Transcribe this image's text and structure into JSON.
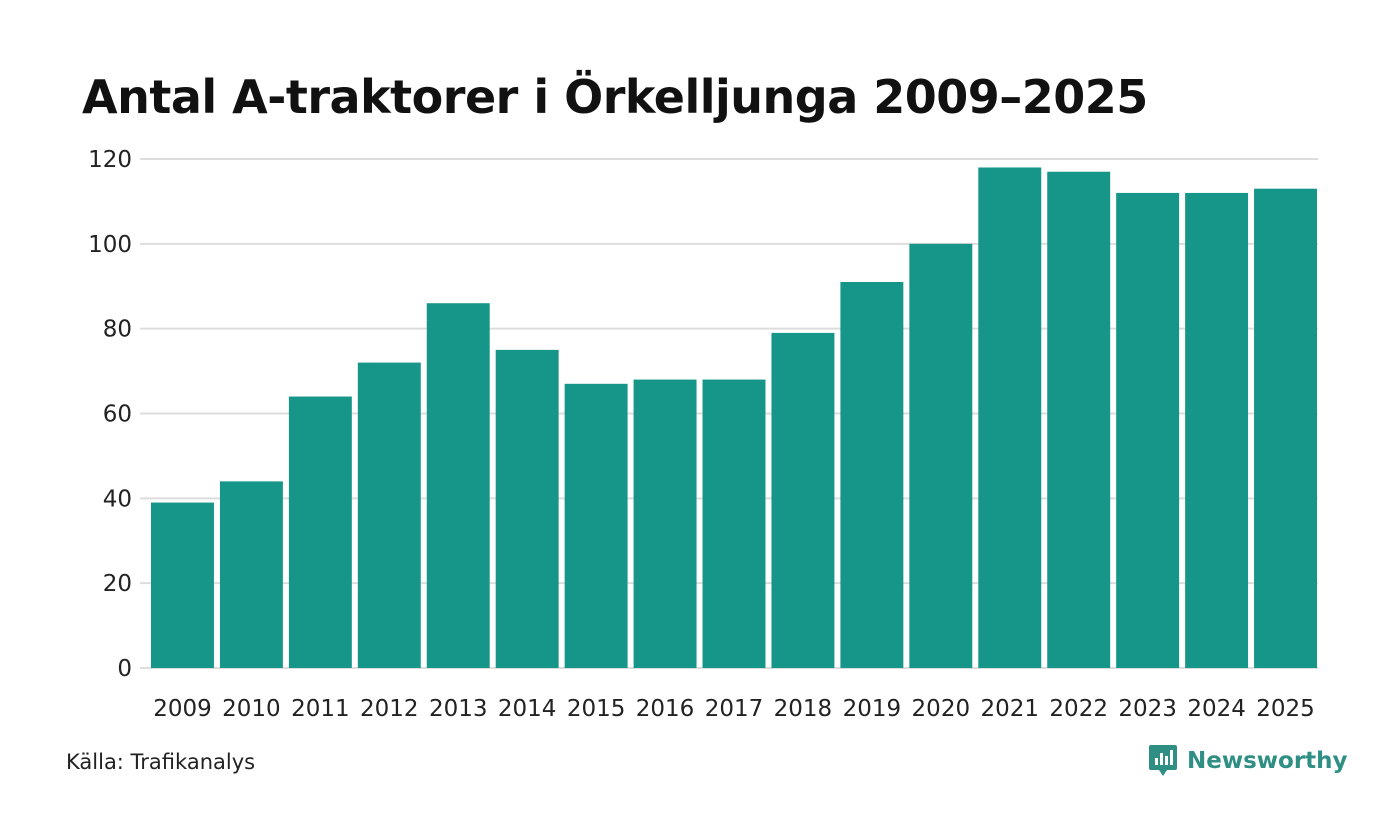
{
  "colors": {
    "bar": "#159688",
    "grid": "#dddddd",
    "brand": "#2f8f84"
  },
  "chart_data": {
    "type": "bar",
    "title": "Antal A-traktorer i Örkelljunga 2009–2025",
    "xlabel": "",
    "ylabel": "",
    "categories": [
      "2009",
      "2010",
      "2011",
      "2012",
      "2013",
      "2014",
      "2015",
      "2016",
      "2017",
      "2018",
      "2019",
      "2020",
      "2021",
      "2022",
      "2023",
      "2024",
      "2025"
    ],
    "values": [
      39,
      44,
      64,
      72,
      86,
      75,
      67,
      68,
      68,
      79,
      91,
      100,
      118,
      117,
      112,
      112,
      113
    ],
    "ylim": [
      0,
      120
    ],
    "yticks": [
      "0",
      "20",
      "40",
      "60",
      "80",
      "100",
      "120"
    ],
    "grid": true
  },
  "source": "Källa: Trafikanalys",
  "brand": {
    "name": "Newsworthy",
    "icon": "newsworthy-logo-icon"
  }
}
